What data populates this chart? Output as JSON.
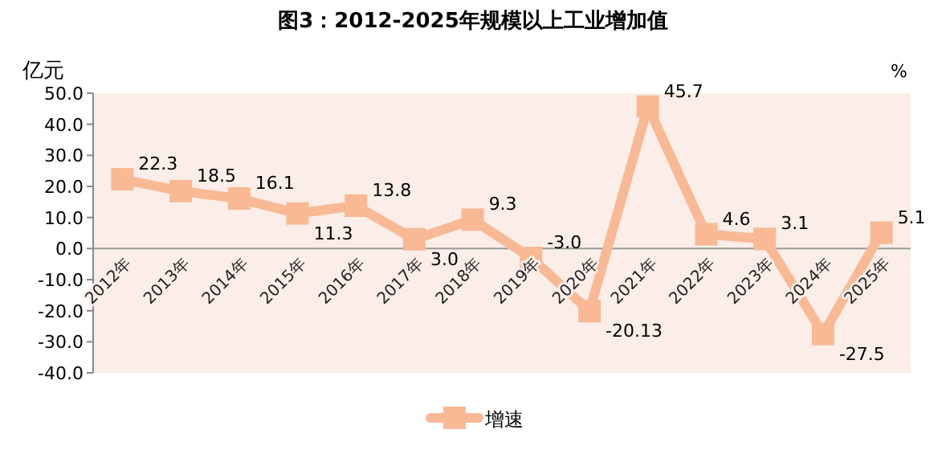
{
  "chart_data": {
    "type": "line",
    "title": "图3：2012-2025年规模以上工业增加值",
    "ylabel": "亿元",
    "annotations": [
      "%"
    ],
    "categories": [
      "2012年",
      "2013年",
      "2014年",
      "2015年",
      "2016年",
      "2017年",
      "2018年",
      "2019年",
      "2020年",
      "2021年",
      "2022年",
      "2023年",
      "2024年",
      "2025年"
    ],
    "series": [
      {
        "name": "增速",
        "color": "#f8b994",
        "values": [
          22.3,
          18.5,
          16.1,
          11.3,
          13.8,
          3.0,
          9.3,
          -3.0,
          -20.13,
          45.7,
          4.6,
          3.1,
          -27.5,
          5.1
        ],
        "value_labels": [
          "22.3",
          "18.5",
          "16.1",
          "11.3",
          "13.8",
          "3.0",
          "9.3",
          "-3.0",
          "-20.13",
          "45.7",
          "4.6",
          "3.1",
          "-27.5",
          "5.1"
        ]
      }
    ],
    "ylim": [
      -40,
      50
    ],
    "yticks": [
      {
        "value": -40,
        "label": "-40.0"
      },
      {
        "value": -30,
        "label": "-30.0"
      },
      {
        "value": -20,
        "label": "-20.0"
      },
      {
        "value": -10,
        "label": "-10.0"
      },
      {
        "value": 0,
        "label": "0.0"
      },
      {
        "value": 10,
        "label": "10.0"
      },
      {
        "value": 20,
        "label": "20.0"
      },
      {
        "value": 30,
        "label": "30.0"
      },
      {
        "value": 40,
        "label": "40.0"
      },
      {
        "value": 50,
        "label": "50.0"
      }
    ],
    "marker": "square",
    "line_style": "solid",
    "legend": "bottom",
    "grid": false
  }
}
